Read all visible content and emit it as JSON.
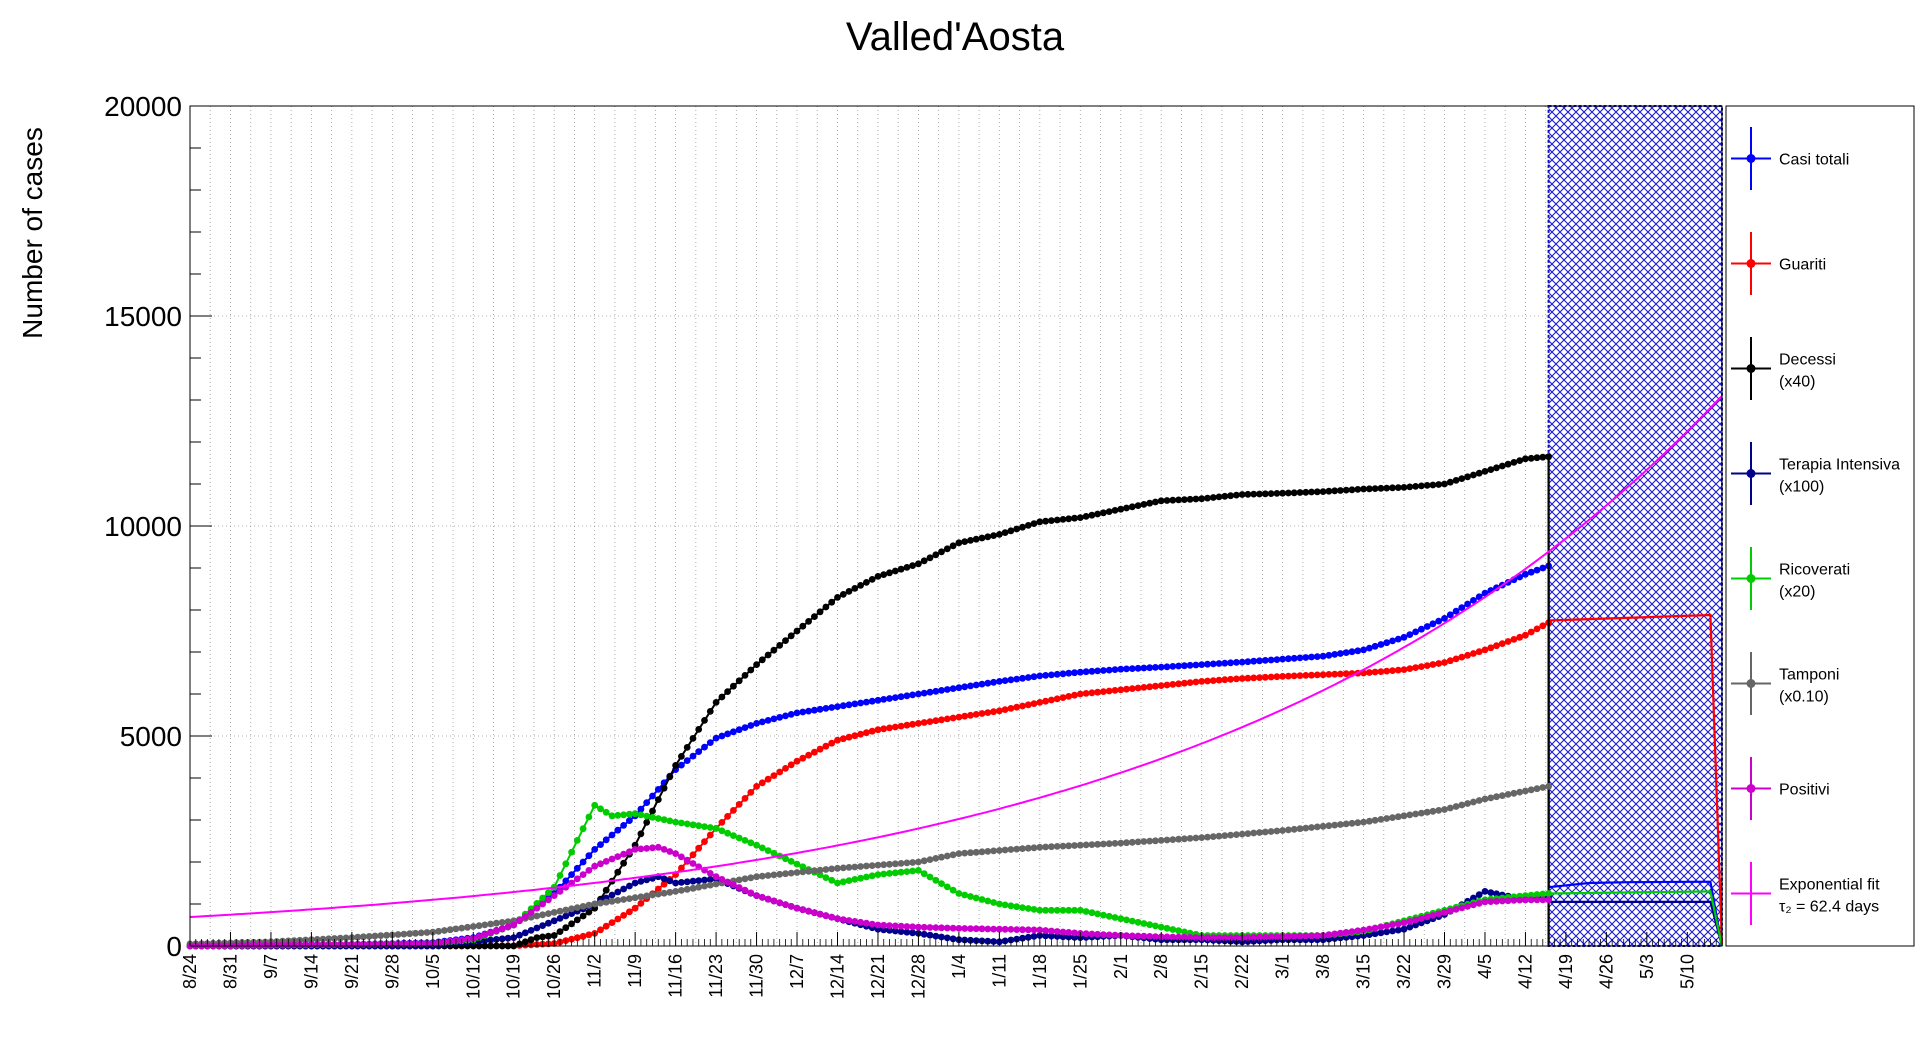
{
  "chart_data": {
    "type": "line",
    "title": "Valled'Aosta",
    "ylabel": "Number of cases",
    "xlabel": "",
    "ylim": [
      0,
      20000
    ],
    "y_ticks": [
      0,
      5000,
      10000,
      15000,
      20000
    ],
    "y_tick_labels": [
      "0",
      "5000",
      "10000",
      "15000",
      "20000"
    ],
    "x_axis": {
      "start_date": "2020-08-24",
      "end_date": "2021-05-16",
      "data_end_date": "2021-04-16",
      "tick_labels": [
        "8/24",
        "8/31",
        "9/7",
        "9/14",
        "9/21",
        "9/28",
        "10/5",
        "10/12",
        "10/19",
        "10/26",
        "11/2",
        "11/9",
        "11/16",
        "11/23",
        "11/30",
        "12/7",
        "12/14",
        "12/21",
        "12/28",
        "1/4",
        "1/11",
        "1/18",
        "1/25",
        "2/1",
        "2/8",
        "2/15",
        "2/22",
        "3/1",
        "3/8",
        "3/15",
        "3/22",
        "3/29",
        "4/5",
        "4/12",
        "4/19",
        "4/26",
        "5/3",
        "5/10"
      ],
      "grid": "dotted, every 3-4 days"
    },
    "forecast_region": {
      "from": "2021-04-16",
      "to": "2021-05-16",
      "fill": "crosshatch",
      "color": "#1010c0"
    },
    "legend_position": "right",
    "series": [
      {
        "name": "Casi totali",
        "sub": "",
        "color": "#0000ff",
        "marker": true,
        "points": [
          [
            "2020-08-24",
            5
          ],
          [
            "2020-09-21",
            40
          ],
          [
            "2020-10-05",
            80
          ],
          [
            "2020-10-12",
            200
          ],
          [
            "2020-10-19",
            500
          ],
          [
            "2020-10-26",
            1250
          ],
          [
            "2020-11-02",
            2300
          ],
          [
            "2020-11-09",
            3100
          ],
          [
            "2020-11-16",
            4200
          ],
          [
            "2020-11-23",
            4950
          ],
          [
            "2020-11-30",
            5300
          ],
          [
            "2020-12-07",
            5550
          ],
          [
            "2020-12-14",
            5700
          ],
          [
            "2020-12-21",
            5850
          ],
          [
            "2020-12-28",
            6000
          ],
          [
            "2021-01-04",
            6150
          ],
          [
            "2021-01-11",
            6300
          ],
          [
            "2021-01-18",
            6430
          ],
          [
            "2021-01-25",
            6520
          ],
          [
            "2021-02-01",
            6590
          ],
          [
            "2021-02-08",
            6640
          ],
          [
            "2021-02-15",
            6700
          ],
          [
            "2021-02-22",
            6760
          ],
          [
            "2021-03-01",
            6830
          ],
          [
            "2021-03-08",
            6900
          ],
          [
            "2021-03-15",
            7050
          ],
          [
            "2021-03-22",
            7350
          ],
          [
            "2021-03-29",
            7800
          ],
          [
            "2021-04-05",
            8400
          ],
          [
            "2021-04-12",
            8850
          ],
          [
            "2021-04-16",
            9050
          ]
        ],
        "forecast": [
          [
            "2021-04-16",
            1400
          ],
          [
            "2021-04-23",
            1500
          ],
          [
            "2021-04-30",
            1520
          ],
          [
            "2021-05-14",
            1530
          ],
          [
            "2021-05-16",
            0
          ]
        ]
      },
      {
        "name": "Guariti",
        "sub": "",
        "color": "#ff0000",
        "marker": true,
        "points": [
          [
            "2020-08-24",
            0
          ],
          [
            "2020-10-19",
            5
          ],
          [
            "2020-10-26",
            60
          ],
          [
            "2020-11-02",
            300
          ],
          [
            "2020-11-09",
            900
          ],
          [
            "2020-11-16",
            1700
          ],
          [
            "2020-11-23",
            2800
          ],
          [
            "2020-11-30",
            3800
          ],
          [
            "2020-12-07",
            4400
          ],
          [
            "2020-12-14",
            4900
          ],
          [
            "2020-12-21",
            5150
          ],
          [
            "2020-12-28",
            5300
          ],
          [
            "2021-01-04",
            5450
          ],
          [
            "2021-01-11",
            5600
          ],
          [
            "2021-01-18",
            5800
          ],
          [
            "2021-01-25",
            6000
          ],
          [
            "2021-02-01",
            6100
          ],
          [
            "2021-02-08",
            6200
          ],
          [
            "2021-02-15",
            6300
          ],
          [
            "2021-02-22",
            6370
          ],
          [
            "2021-03-01",
            6420
          ],
          [
            "2021-03-08",
            6460
          ],
          [
            "2021-03-15",
            6500
          ],
          [
            "2021-03-22",
            6580
          ],
          [
            "2021-03-29",
            6750
          ],
          [
            "2021-04-05",
            7050
          ],
          [
            "2021-04-12",
            7400
          ],
          [
            "2021-04-16",
            7700
          ]
        ],
        "forecast": [
          [
            "2021-04-16",
            7750
          ],
          [
            "2021-05-14",
            7880
          ],
          [
            "2021-05-16",
            0
          ]
        ]
      },
      {
        "name": "Decessi",
        "sub": "(x40)",
        "color": "#000000",
        "marker": true,
        "points": [
          [
            "2020-08-24",
            0
          ],
          [
            "2020-10-19",
            0
          ],
          [
            "2020-10-23",
            200
          ],
          [
            "2020-10-26",
            250
          ],
          [
            "2020-11-02",
            900
          ],
          [
            "2020-11-09",
            2400
          ],
          [
            "2020-11-16",
            4300
          ],
          [
            "2020-11-23",
            5800
          ],
          [
            "2020-11-30",
            6700
          ],
          [
            "2020-12-07",
            7500
          ],
          [
            "2020-12-14",
            8300
          ],
          [
            "2020-12-21",
            8800
          ],
          [
            "2020-12-28",
            9100
          ],
          [
            "2021-01-04",
            9600
          ],
          [
            "2021-01-11",
            9800
          ],
          [
            "2021-01-18",
            10100
          ],
          [
            "2021-01-25",
            10200
          ],
          [
            "2021-02-01",
            10400
          ],
          [
            "2021-02-08",
            10600
          ],
          [
            "2021-02-15",
            10650
          ],
          [
            "2021-02-22",
            10750
          ],
          [
            "2021-03-01",
            10780
          ],
          [
            "2021-03-08",
            10820
          ],
          [
            "2021-03-15",
            10880
          ],
          [
            "2021-03-22",
            10920
          ],
          [
            "2021-03-29",
            11000
          ],
          [
            "2021-04-05",
            11300
          ],
          [
            "2021-04-12",
            11600
          ],
          [
            "2021-04-16",
            11650
          ]
        ],
        "forecast": [
          [
            "2021-04-16",
            0
          ]
        ]
      },
      {
        "name": "Terapia Intensiva",
        "sub": "(x100)",
        "color": "#00008b",
        "marker": true,
        "points": [
          [
            "2020-08-24",
            0
          ],
          [
            "2020-10-05",
            0
          ],
          [
            "2020-10-12",
            100
          ],
          [
            "2020-10-19",
            200
          ],
          [
            "2020-10-26",
            600
          ],
          [
            "2020-11-02",
            1000
          ],
          [
            "2020-11-09",
            1500
          ],
          [
            "2020-11-13",
            1650
          ],
          [
            "2020-11-16",
            1500
          ],
          [
            "2020-11-23",
            1600
          ],
          [
            "2020-11-30",
            1200
          ],
          [
            "2020-12-07",
            900
          ],
          [
            "2020-12-14",
            650
          ],
          [
            "2020-12-21",
            400
          ],
          [
            "2020-12-28",
            300
          ],
          [
            "2021-01-04",
            150
          ],
          [
            "2021-01-11",
            100
          ],
          [
            "2021-01-18",
            250
          ],
          [
            "2021-01-25",
            200
          ],
          [
            "2021-02-01",
            250
          ],
          [
            "2021-02-08",
            150
          ],
          [
            "2021-02-15",
            150
          ],
          [
            "2021-02-22",
            100
          ],
          [
            "2021-03-01",
            150
          ],
          [
            "2021-03-08",
            150
          ],
          [
            "2021-03-15",
            250
          ],
          [
            "2021-03-22",
            400
          ],
          [
            "2021-03-29",
            750
          ],
          [
            "2021-04-05",
            1300
          ],
          [
            "2021-04-12",
            1100
          ],
          [
            "2021-04-16",
            1150
          ]
        ],
        "forecast": [
          [
            "2021-04-16",
            1050
          ],
          [
            "2021-05-14",
            1050
          ],
          [
            "2021-05-16",
            0
          ]
        ]
      },
      {
        "name": "Ricoverati",
        "sub": "(x20)",
        "color": "#00cc00",
        "marker": true,
        "points": [
          [
            "2020-08-24",
            0
          ],
          [
            "2020-10-05",
            60
          ],
          [
            "2020-10-12",
            150
          ],
          [
            "2020-10-19",
            500
          ],
          [
            "2020-10-26",
            1400
          ],
          [
            "2020-11-02",
            3350
          ],
          [
            "2020-11-05",
            3100
          ],
          [
            "2020-11-09",
            3150
          ],
          [
            "2020-11-16",
            2950
          ],
          [
            "2020-11-23",
            2800
          ],
          [
            "2020-11-30",
            2400
          ],
          [
            "2020-12-07",
            1950
          ],
          [
            "2020-12-14",
            1500
          ],
          [
            "2020-12-21",
            1700
          ],
          [
            "2020-12-28",
            1800
          ],
          [
            "2021-01-04",
            1250
          ],
          [
            "2021-01-11",
            1000
          ],
          [
            "2021-01-18",
            850
          ],
          [
            "2021-01-25",
            850
          ],
          [
            "2021-02-01",
            650
          ],
          [
            "2021-02-08",
            450
          ],
          [
            "2021-02-15",
            250
          ],
          [
            "2021-02-22",
            250
          ],
          [
            "2021-03-01",
            250
          ],
          [
            "2021-03-08",
            250
          ],
          [
            "2021-03-15",
            350
          ],
          [
            "2021-03-22",
            600
          ],
          [
            "2021-03-29",
            850
          ],
          [
            "2021-04-05",
            1100
          ],
          [
            "2021-04-12",
            1200
          ],
          [
            "2021-04-16",
            1250
          ]
        ],
        "forecast": [
          [
            "2021-04-16",
            1250
          ],
          [
            "2021-05-14",
            1300
          ],
          [
            "2021-05-16",
            0
          ]
        ]
      },
      {
        "name": "Tamponi",
        "sub": "(x0.10)",
        "color": "#666666",
        "marker": true,
        "points": [
          [
            "2020-08-24",
            50
          ],
          [
            "2020-09-07",
            100
          ],
          [
            "2020-09-21",
            200
          ],
          [
            "2020-10-05",
            330
          ],
          [
            "2020-10-19",
            600
          ],
          [
            "2020-11-02",
            1000
          ],
          [
            "2020-11-16",
            1300
          ],
          [
            "2020-11-30",
            1650
          ],
          [
            "2020-12-14",
            1850
          ],
          [
            "2020-12-28",
            2000
          ],
          [
            "2021-01-04",
            2200
          ],
          [
            "2021-01-18",
            2350
          ],
          [
            "2021-02-01",
            2450
          ],
          [
            "2021-02-15",
            2580
          ],
          [
            "2021-03-01",
            2750
          ],
          [
            "2021-03-15",
            2950
          ],
          [
            "2021-03-29",
            3250
          ],
          [
            "2021-04-05",
            3500
          ],
          [
            "2021-04-16",
            3800
          ]
        ],
        "forecast": []
      },
      {
        "name": "Positivi",
        "sub": "",
        "color": "#cc00cc",
        "marker": true,
        "points": [
          [
            "2020-08-24",
            0
          ],
          [
            "2020-10-05",
            60
          ],
          [
            "2020-10-12",
            180
          ],
          [
            "2020-10-19",
            500
          ],
          [
            "2020-10-26",
            1200
          ],
          [
            "2020-11-02",
            1900
          ],
          [
            "2020-11-09",
            2300
          ],
          [
            "2020-11-13",
            2350
          ],
          [
            "2020-11-16",
            2200
          ],
          [
            "2020-11-23",
            1650
          ],
          [
            "2020-11-30",
            1200
          ],
          [
            "2020-12-07",
            900
          ],
          [
            "2020-12-14",
            650
          ],
          [
            "2020-12-21",
            500
          ],
          [
            "2020-12-28",
            450
          ],
          [
            "2021-01-04",
            420
          ],
          [
            "2021-01-11",
            400
          ],
          [
            "2021-01-18",
            380
          ],
          [
            "2021-01-25",
            300
          ],
          [
            "2021-02-01",
            250
          ],
          [
            "2021-02-08",
            220
          ],
          [
            "2021-02-15",
            200
          ],
          [
            "2021-02-22",
            200
          ],
          [
            "2021-03-01",
            220
          ],
          [
            "2021-03-08",
            250
          ],
          [
            "2021-03-15",
            380
          ],
          [
            "2021-03-22",
            550
          ],
          [
            "2021-03-29",
            800
          ],
          [
            "2021-04-05",
            1050
          ],
          [
            "2021-04-12",
            1100
          ],
          [
            "2021-04-16",
            1100
          ]
        ],
        "forecast": []
      },
      {
        "name": "Exponential fit",
        "sub": "τ₂ = 62.4 days",
        "color": "#ff00ff",
        "marker": false,
        "fit": {
          "type": "exponential",
          "doubling_days": 62.4,
          "value_at_start": 690,
          "from": "2020-08-24",
          "to": "2021-05-16"
        }
      }
    ]
  }
}
